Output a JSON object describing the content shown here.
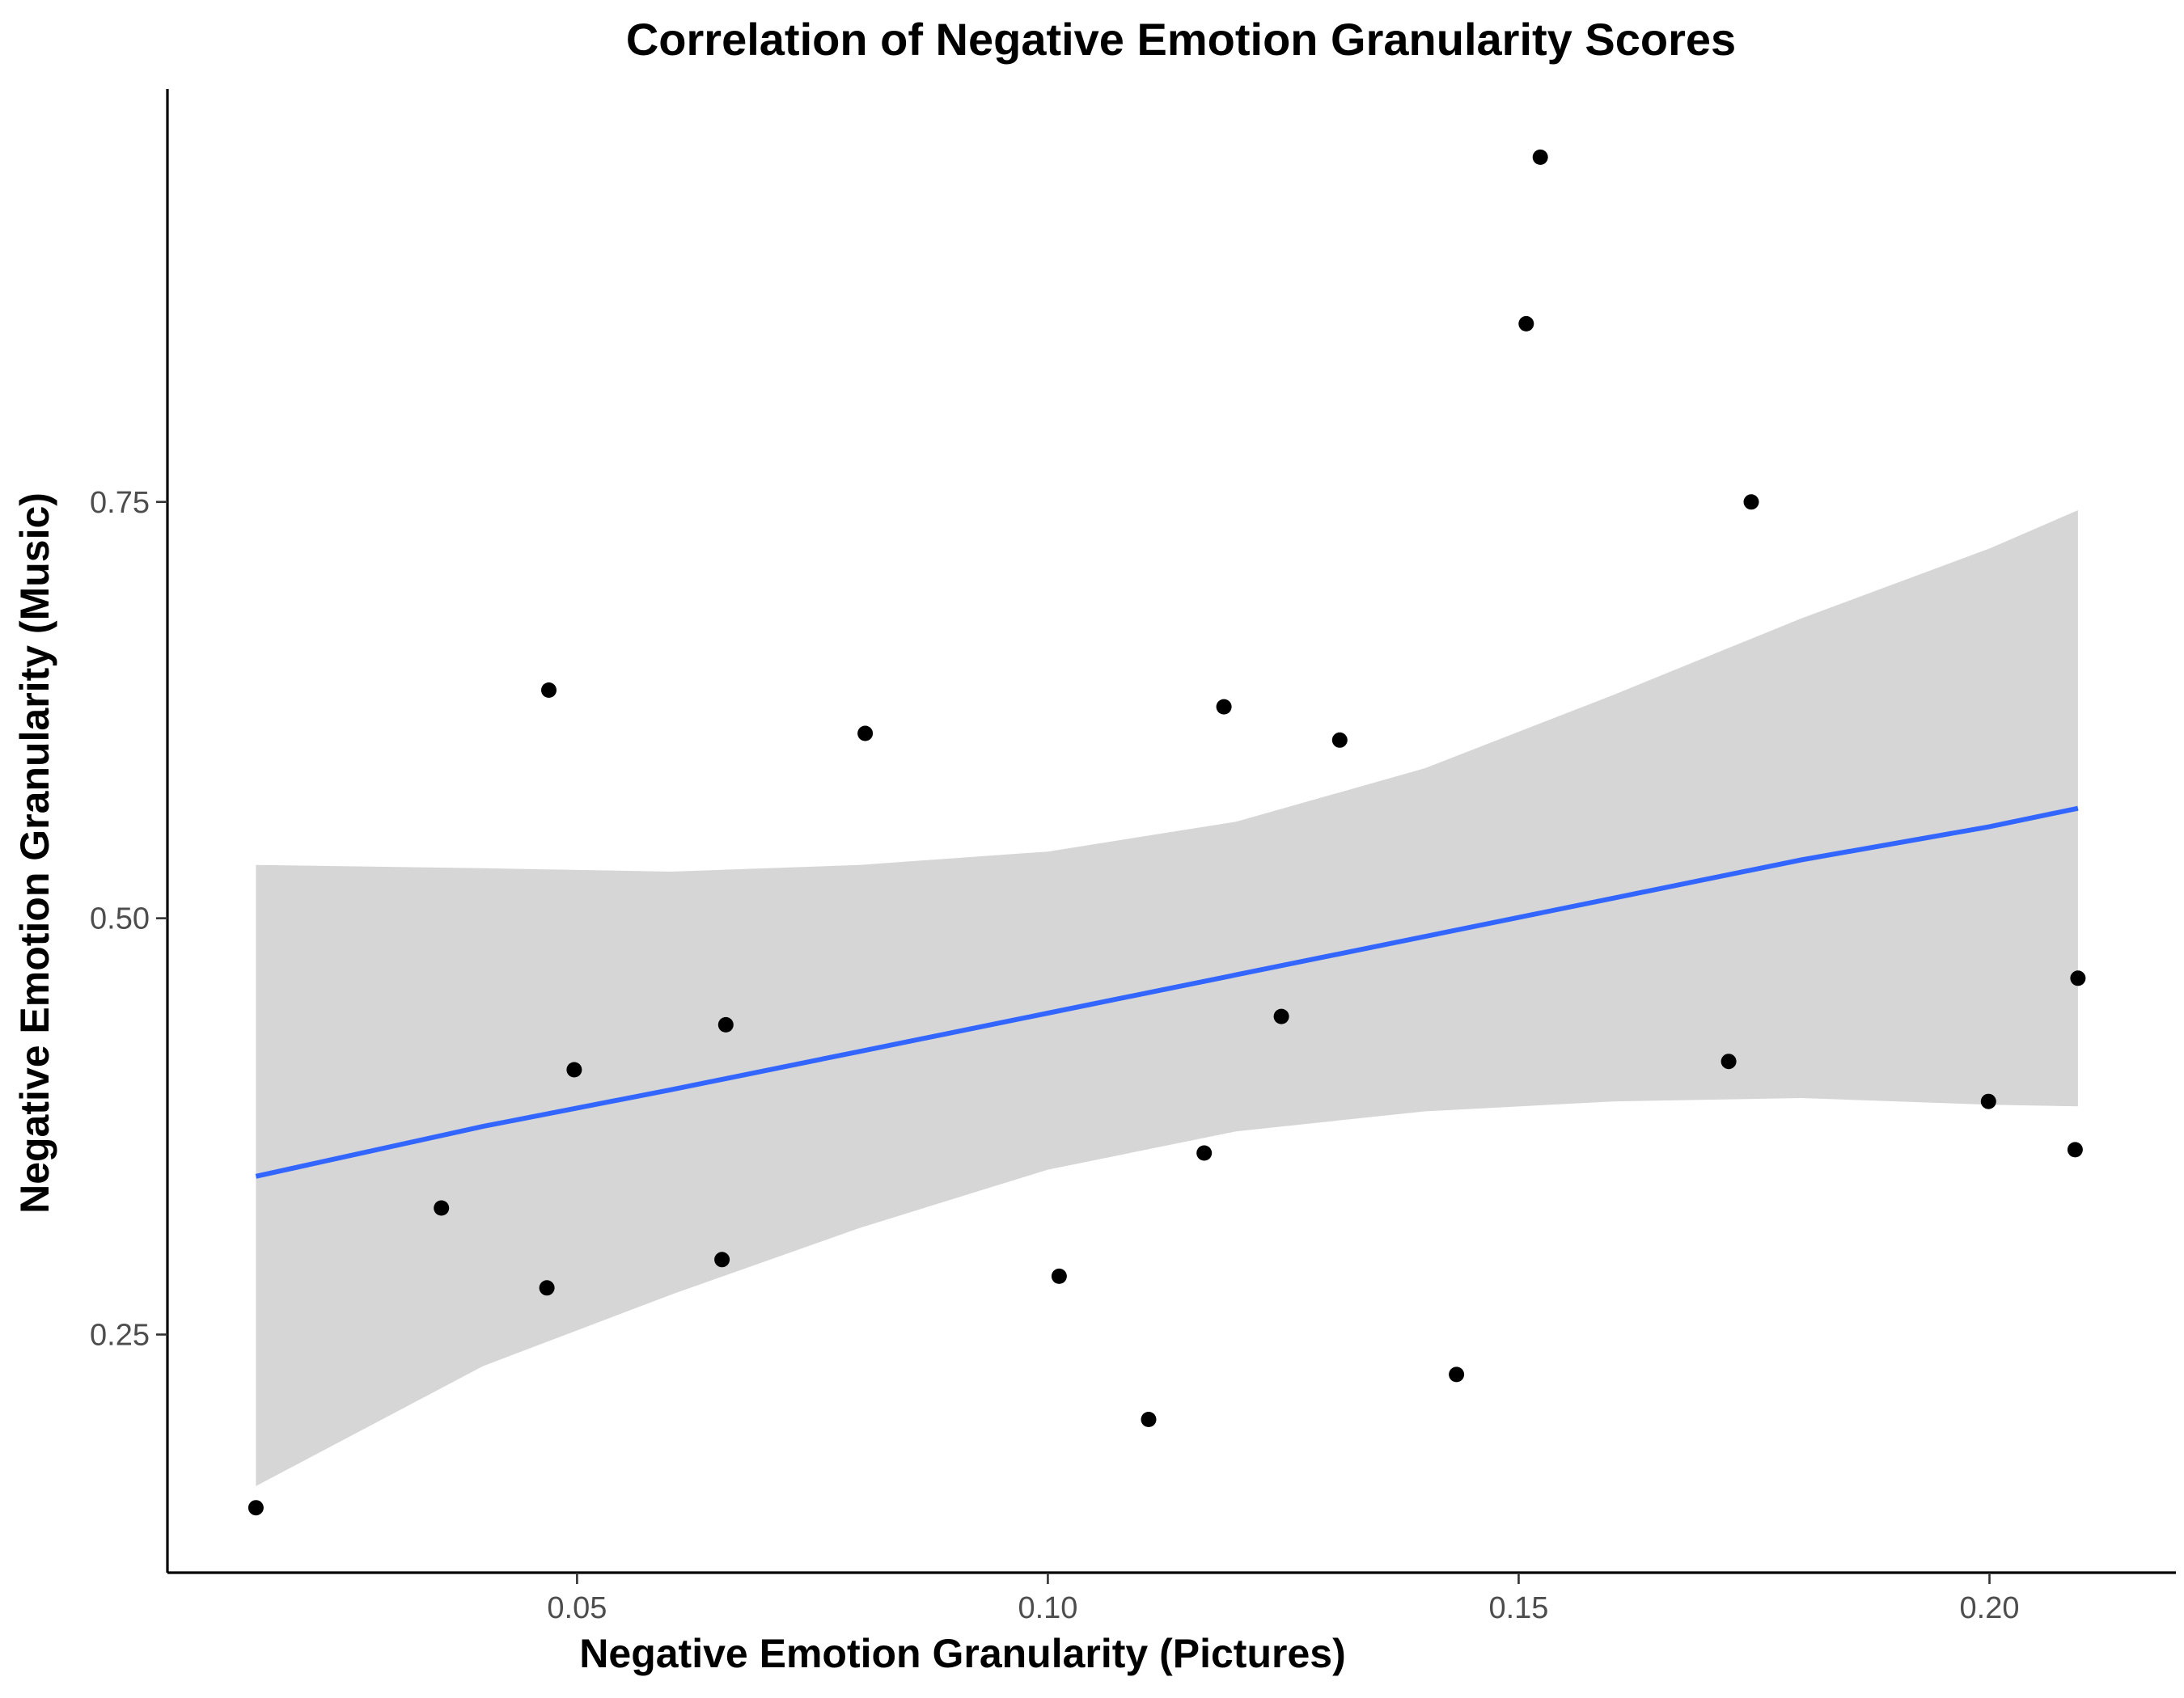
{
  "chart_data": {
    "type": "scatter",
    "title": "Correlation of Negative Emotion Granularity Scores",
    "xlabel": "Negative Emotion Granularity (Pictures)",
    "ylabel": "Negative Emotion Granularity (Music)",
    "xlim": [
      0.0065,
      0.2198
    ],
    "ylim": [
      0.107,
      0.998
    ],
    "x_ticks": [
      {
        "value": 0.05,
        "label": "0.05"
      },
      {
        "value": 0.1,
        "label": "0.10"
      },
      {
        "value": 0.15,
        "label": "0.15"
      },
      {
        "value": 0.2,
        "label": "0.20"
      }
    ],
    "y_ticks": [
      {
        "value": 0.25,
        "label": "0.25"
      },
      {
        "value": 0.5,
        "label": "0.50"
      },
      {
        "value": 0.75,
        "label": "0.75"
      }
    ],
    "points": [
      {
        "x": 0.0159,
        "y": 0.146
      },
      {
        "x": 0.0356,
        "y": 0.326
      },
      {
        "x": 0.0468,
        "y": 0.278
      },
      {
        "x": 0.047,
        "y": 0.637
      },
      {
        "x": 0.0497,
        "y": 0.409
      },
      {
        "x": 0.0654,
        "y": 0.295
      },
      {
        "x": 0.0658,
        "y": 0.436
      },
      {
        "x": 0.0806,
        "y": 0.611
      },
      {
        "x": 0.1012,
        "y": 0.285
      },
      {
        "x": 0.1107,
        "y": 0.199
      },
      {
        "x": 0.1166,
        "y": 0.359
      },
      {
        "x": 0.1187,
        "y": 0.627
      },
      {
        "x": 0.1248,
        "y": 0.441
      },
      {
        "x": 0.131,
        "y": 0.607
      },
      {
        "x": 0.1434,
        "y": 0.226
      },
      {
        "x": 0.1508,
        "y": 0.857
      },
      {
        "x": 0.1523,
        "y": 0.957
      },
      {
        "x": 0.1723,
        "y": 0.414
      },
      {
        "x": 0.1747,
        "y": 0.75
      },
      {
        "x": 0.1999,
        "y": 0.39
      },
      {
        "x": 0.2091,
        "y": 0.361
      },
      {
        "x": 0.2094,
        "y": 0.464
      }
    ],
    "trend_line": {
      "type": "linear fit with confidence band",
      "color": "#3366FF",
      "band_color": "#D6D6D6",
      "x": [
        0.0159,
        0.04,
        0.06,
        0.08,
        0.1,
        0.12,
        0.14,
        0.16,
        0.18,
        0.2,
        0.2094
      ],
      "fit": [
        0.345,
        0.375,
        0.397,
        0.42,
        0.443,
        0.466,
        0.489,
        0.512,
        0.535,
        0.555,
        0.566
      ],
      "lower": [
        0.159,
        0.231,
        0.274,
        0.314,
        0.349,
        0.372,
        0.384,
        0.39,
        0.392,
        0.388,
        0.387
      ],
      "upper": [
        0.532,
        0.53,
        0.528,
        0.532,
        0.54,
        0.558,
        0.59,
        0.634,
        0.68,
        0.722,
        0.745
      ]
    },
    "point_color": "#000000",
    "grid": false,
    "legend": "none"
  }
}
